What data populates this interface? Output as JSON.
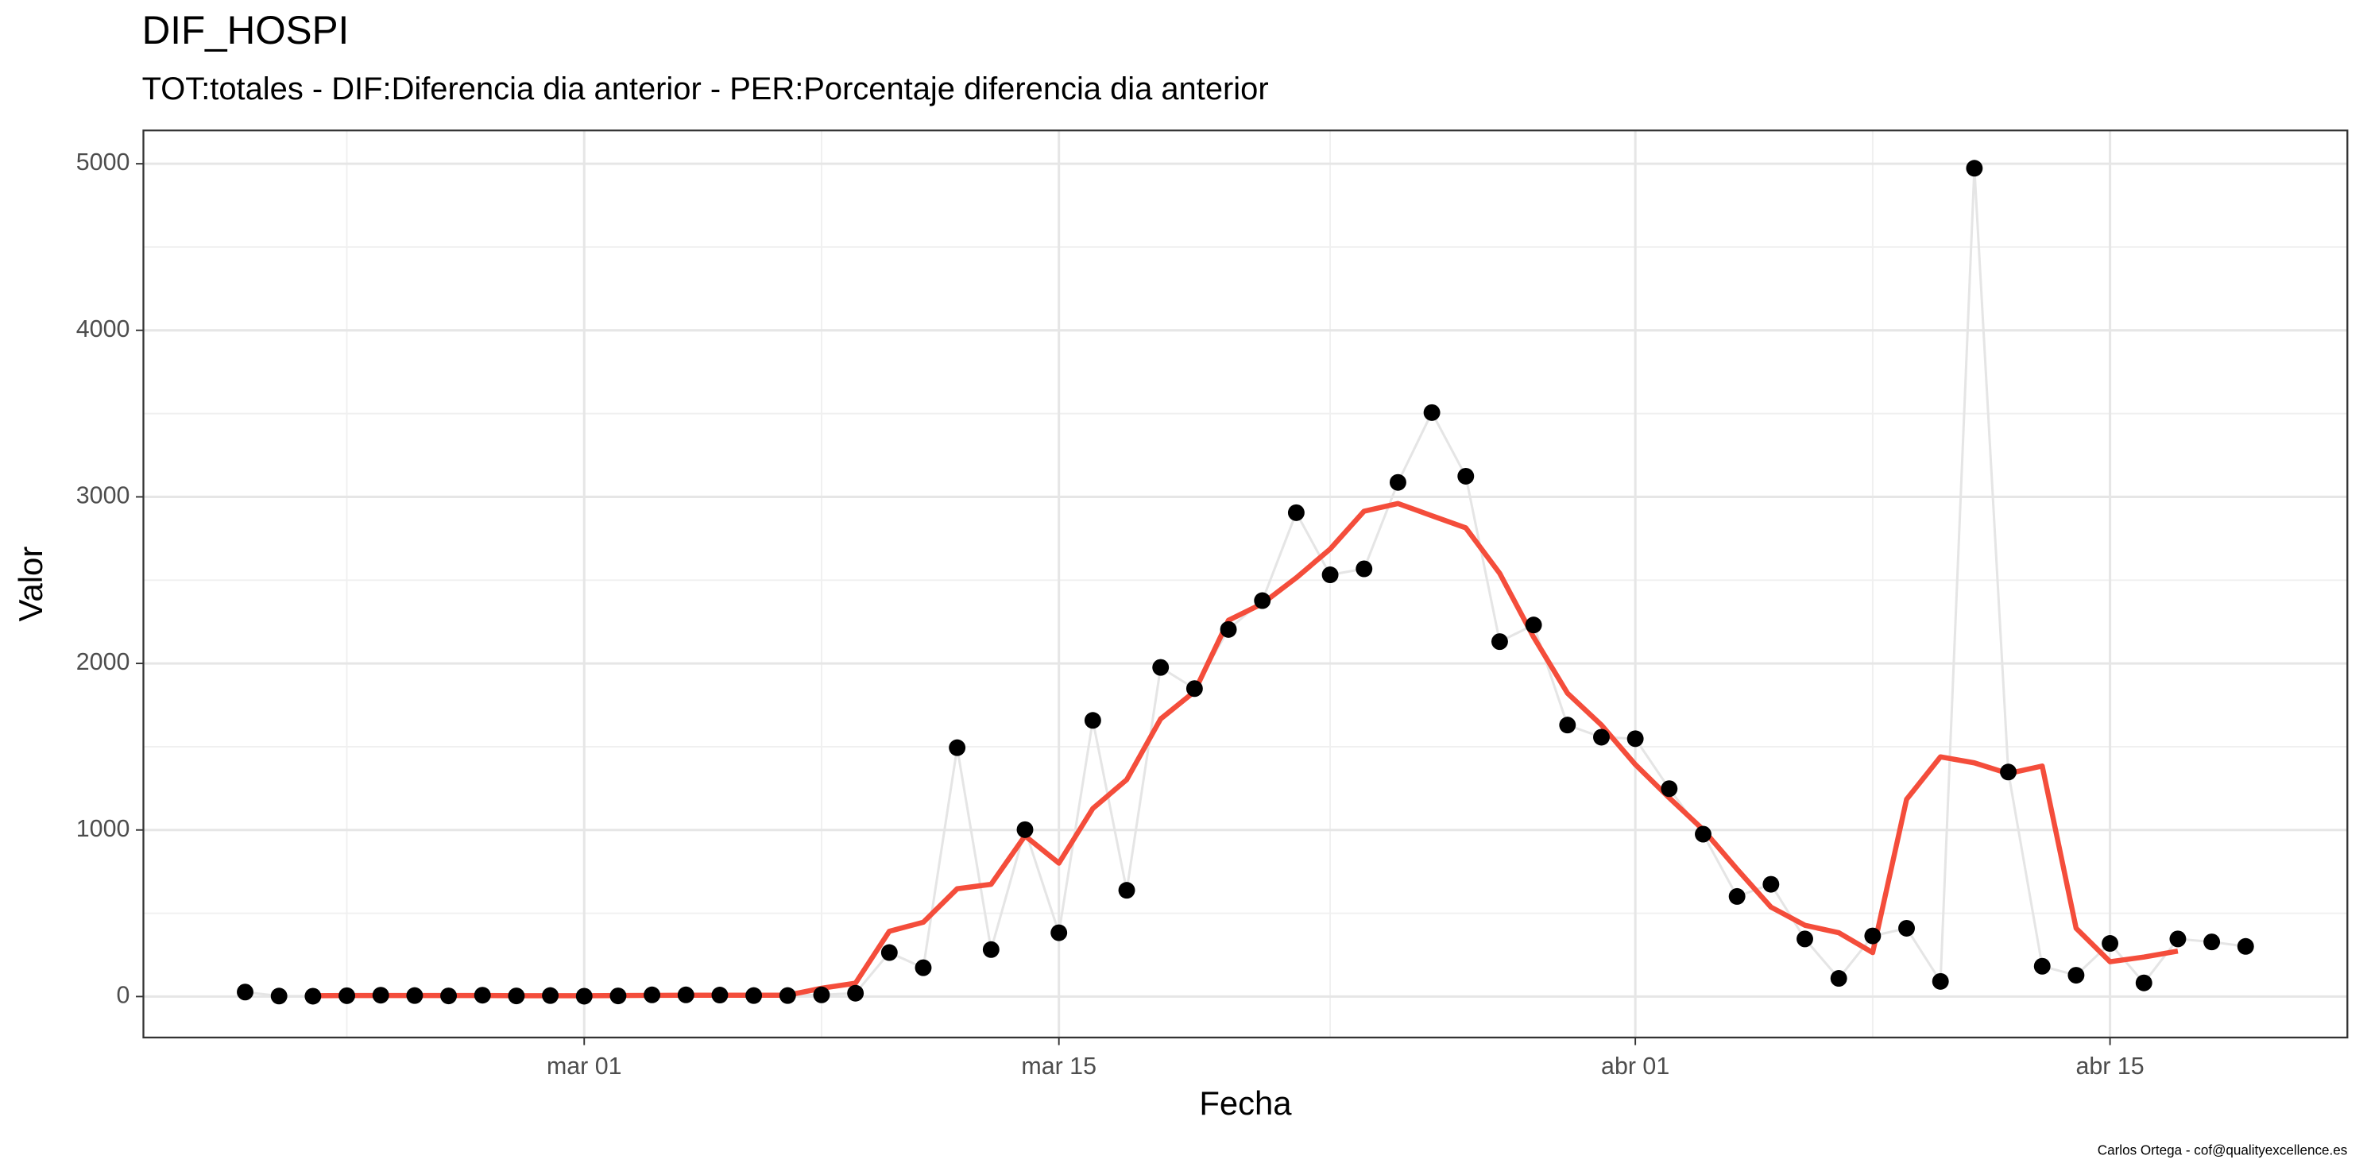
{
  "chart_data": {
    "type": "line",
    "title": "DIF_HOSPI",
    "subtitle": "TOT:totales - DIF:Diferencia dia anterior - PER:Porcentaje diferencia dia anterior",
    "x_label": "Fecha",
    "y_label": "Valor",
    "caption": "Carlos Ortega - cof@qualityexcellence.es",
    "x": [
      "02-20",
      "02-21",
      "02-22",
      "02-23",
      "02-24",
      "02-25",
      "02-26",
      "02-27",
      "02-28",
      "02-29",
      "03-01",
      "03-02",
      "03-03",
      "03-04",
      "03-05",
      "03-06",
      "03-07",
      "03-08",
      "03-09",
      "03-10",
      "03-11",
      "03-12",
      "03-13",
      "03-14",
      "03-15",
      "03-16",
      "03-17",
      "03-18",
      "03-19",
      "03-20",
      "03-21",
      "03-22",
      "03-23",
      "03-24",
      "03-25",
      "03-26",
      "03-27",
      "03-28",
      "03-29",
      "03-30",
      "03-31",
      "04-01",
      "04-02",
      "04-03",
      "04-04",
      "04-05",
      "04-06",
      "04-07",
      "04-08",
      "04-09",
      "04-10",
      "04-11",
      "04-12",
      "04-13",
      "04-14",
      "04-15",
      "04-16",
      "04-17",
      "04-18",
      "04-19"
    ],
    "series": [
      {
        "color": "#000000",
        "line_color": "#e5e5e5",
        "values": [
          27,
          3,
          2,
          5,
          8,
          6,
          4,
          8,
          4,
          6,
          2,
          4,
          10,
          10,
          9,
          6,
          6,
          10,
          20,
          264,
          173,
          1494,
          282,
          1002,
          383,
          1658,
          638,
          1976,
          1849,
          2204,
          2377,
          2905,
          2532,
          2568,
          3087,
          3506,
          3124,
          2131,
          2231,
          1630,
          1557,
          1548,
          1248,
          975,
          601,
          674,
          346,
          109,
          364,
          410,
          91,
          4973,
          1348,
          182,
          128,
          319,
          82,
          346,
          328,
          301
        ]
      },
      {
        "color": "#f44d3b",
        "values": [
          null,
          null,
          5,
          6,
          6,
          6,
          6,
          6,
          5,
          5,
          5,
          6,
          7,
          8,
          8,
          8,
          8,
          50,
          80,
          392,
          446,
          647,
          674,
          965,
          801,
          1129,
          1302,
          1667,
          1831,
          2259,
          2359,
          2514,
          2687,
          2914,
          2960,
          2887,
          2814,
          2541,
          2158,
          1821,
          1630,
          1393,
          1193,
          1002,
          765,
          537,
          428,
          383,
          264,
          1184,
          1439,
          1403,
          1339,
          1384,
          410,
          209,
          237,
          273,
          null,
          null
        ]
      }
    ],
    "xlim": [
      "02-17",
      "04-22"
    ],
    "xticks": [
      {
        "value": "03-01",
        "label": "mar 01"
      },
      {
        "value": "03-15",
        "label": "mar 15"
      },
      {
        "value": "04-01",
        "label": "abr 01"
      },
      {
        "value": "04-15",
        "label": "abr 15"
      }
    ],
    "xticks_minor": [
      "02-23",
      "03-08",
      "03-23",
      "04-08"
    ],
    "ylim": [
      -246,
      5200
    ],
    "yticks": [
      0,
      1000,
      2000,
      3000,
      4000,
      5000
    ],
    "yticks_minor": [
      500,
      1500,
      2500,
      3500,
      4500
    ],
    "grid": true
  }
}
